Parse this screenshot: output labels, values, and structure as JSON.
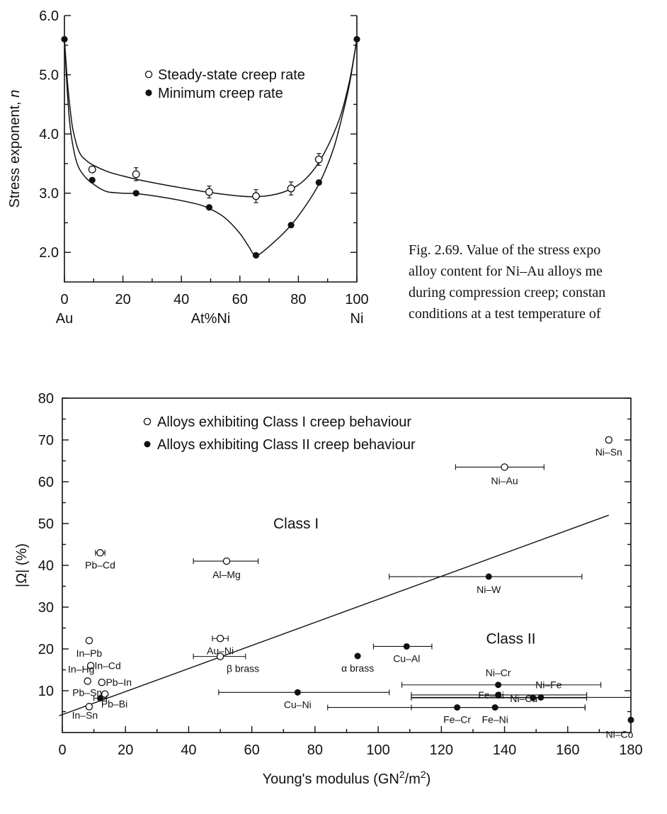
{
  "caption": {
    "lines": [
      "Fig. 2.69.  Value of the stress expo",
      "alloy content for Ni–Au alloys me",
      "during compression creep; constan",
      "conditions at a test temperature of"
    ]
  },
  "chart_data": [
    {
      "type": "line",
      "title": "",
      "xlabel": "At%Ni",
      "ylabel": "Stress exponent, n",
      "ylabel_parts": [
        "Stress exponent, ",
        "n"
      ],
      "xlim": [
        0,
        100
      ],
      "ylim": [
        1.5,
        6.0
      ],
      "x_ticks": [
        0,
        20,
        40,
        60,
        80,
        100
      ],
      "y_ticks": [
        "2.0",
        "3.0",
        "4.0",
        "5.0",
        "6.0"
      ],
      "x_end_labels": {
        "left": "Au",
        "right": "Ni"
      },
      "legend_placement": "upper-center",
      "series": [
        {
          "name": "Steady-state creep rate",
          "marker": "open-circle",
          "x": [
            9.5,
            24.5,
            49.5,
            65.5,
            77.5,
            87
          ],
          "y": [
            3.4,
            3.32,
            3.02,
            2.95,
            3.08,
            3.57
          ],
          "err": [
            0,
            0.11,
            0.1,
            0.11,
            0.11,
            0.1
          ],
          "curve_x": [
            0,
            1,
            2,
            3,
            5,
            7.5,
            10,
            15,
            20,
            25,
            30,
            40,
            50,
            60,
            65,
            70,
            75,
            80,
            84,
            88,
            92,
            95,
            97.5,
            99,
            100
          ],
          "curve_y": [
            5.6,
            4.9,
            4.4,
            4.05,
            3.7,
            3.55,
            3.47,
            3.36,
            3.29,
            3.23,
            3.18,
            3.09,
            3.01,
            2.95,
            2.94,
            2.96,
            3.02,
            3.14,
            3.32,
            3.6,
            4.0,
            4.4,
            4.9,
            5.3,
            5.6
          ]
        },
        {
          "name": "Minimum creep rate",
          "marker": "filled-circle",
          "x": [
            9.5,
            24.5,
            49.5,
            65.5,
            77.5,
            87
          ],
          "y": [
            3.22,
            3.0,
            2.76,
            1.95,
            2.46,
            3.18
          ],
          "curve_x": [
            0,
            1,
            2,
            3.5,
            5,
            7.5,
            10,
            12.5,
            15,
            20,
            25,
            35,
            45,
            50,
            55,
            60,
            63,
            65.5,
            70,
            77.5,
            84,
            88,
            92,
            95,
            97.5,
            100
          ],
          "curve_y": [
            5.6,
            4.7,
            4.1,
            3.65,
            3.42,
            3.25,
            3.15,
            3.07,
            3.02,
            3.0,
            2.99,
            2.92,
            2.82,
            2.73,
            2.58,
            2.32,
            2.1,
            1.95,
            2.1,
            2.46,
            2.9,
            3.25,
            3.75,
            4.3,
            4.85,
            5.6
          ]
        }
      ],
      "endpoints": [
        {
          "x": 0,
          "y": 5.6
        },
        {
          "x": 100,
          "y": 5.6
        }
      ]
    },
    {
      "type": "scatter",
      "title": "",
      "xlabel": "Young's modulus (GN2/m2)",
      "xlabel_parts": [
        "Young's modulus (GN",
        "2",
        "/m",
        "2",
        ")"
      ],
      "ylabel": "|Ω| (%)",
      "xlim": [
        0,
        180
      ],
      "ylim": [
        0,
        80
      ],
      "x_ticks": [
        0,
        20,
        40,
        60,
        80,
        100,
        120,
        140,
        160,
        180
      ],
      "y_ticks": [
        10,
        20,
        30,
        40,
        50,
        60,
        70,
        80
      ],
      "legend_placement": "top-left",
      "region_labels": [
        {
          "text": "Class I",
          "x": 74,
          "y": 50
        },
        {
          "text": "Class II",
          "x": 142,
          "y": 22.5
        }
      ],
      "boundary_line": {
        "x": [
          -1,
          173
        ],
        "y": [
          4,
          52
        ]
      },
      "series": [
        {
          "name": "Alloys exhibiting Class I creep behaviour",
          "marker": "open-circle",
          "points": [
            {
              "label": "Ni–Sn",
              "x": 173,
              "y": 70,
              "xerr": [
                173,
                173
              ]
            },
            {
              "label": "Ni–Au",
              "x": 140,
              "y": 63.5,
              "xerr": [
                124.5,
                152.5
              ]
            },
            {
              "label": "Pb–Cd",
              "x": 12,
              "y": 43,
              "xerr": [
                10.5,
                13.5
              ]
            },
            {
              "label": "Al–Mg",
              "x": 52,
              "y": 41,
              "xerr": [
                41.5,
                62
              ]
            },
            {
              "label": "Au–Ni",
              "x": 50,
              "y": 22.5,
              "xerr": [
                47.5,
                52.5
              ]
            },
            {
              "label": "β brass",
              "x": 50,
              "y": 18.2,
              "xerr": [
                41.5,
                58
              ]
            },
            {
              "label": "In–Pb",
              "x": 8.5,
              "y": 22,
              "xerr": [
                7.8,
                9.2
              ]
            },
            {
              "label": "In–Cd",
              "x": 9,
              "y": 16,
              "xerr": [
                8.3,
                9.7
              ]
            },
            {
              "label": "In–Hg",
              "x": 8,
              "y": 12.3,
              "xerr": [
                8,
                8
              ]
            },
            {
              "label": "Pb–In",
              "x": 12.5,
              "y": 12,
              "xerr": [
                11.8,
                13.2
              ]
            },
            {
              "label": "Pb–Sn",
              "x": 13.5,
              "y": 9.2,
              "xerr": [
                13.5,
                13.5
              ]
            },
            {
              "label": "In–Sn",
              "x": 8.5,
              "y": 6.2,
              "xerr": [
                7.8,
                9.2
              ]
            }
          ]
        },
        {
          "name": "Alloys exhibiting Class II creep behaviour",
          "marker": "filled-circle",
          "points": [
            {
              "label": "Ni–W",
              "x": 135,
              "y": 37.3,
              "xerr": [
                103.5,
                164.5
              ]
            },
            {
              "label": "Cu–Al",
              "x": 109,
              "y": 20.6,
              "xerr": [
                98.5,
                117
              ]
            },
            {
              "label": "α brass",
              "x": 93.5,
              "y": 18.3,
              "xerr": [
                93.5,
                93.5
              ]
            },
            {
              "label": "Cu–Ni",
              "x": 74.5,
              "y": 9.6,
              "xerr": [
                49.5,
                103.5
              ]
            },
            {
              "label": "Ni–Cr",
              "x": 138,
              "y": 11.4,
              "xerr": [
                107.5,
                170.5
              ]
            },
            {
              "label": "Fe–Si",
              "x": 138,
              "y": 9.0,
              "xerr": [
                110.5,
                166
              ]
            },
            {
              "label": "Ni–Fe",
              "x": 151.5,
              "y": 8.4,
              "xerr": [
                110.5,
                180
              ]
            },
            {
              "label": "Ni–Cu",
              "x": 149,
              "y": 8.3,
              "xerr": [
                110.5,
                166
              ]
            },
            {
              "label": "Fe–Cr",
              "x": 125,
              "y": 6.0,
              "xerr": [
                84,
                165.5
              ]
            },
            {
              "label": "Fe–Ni",
              "x": 137,
              "y": 6.0,
              "xerr": [
                110.5,
                165.5
              ]
            },
            {
              "label": "Ni–Co",
              "x": 180,
              "y": 3.0,
              "xerr": [
                180,
                180
              ]
            },
            {
              "label": "Pb–Bi",
              "x": 12,
              "y": 8.2,
              "xerr": [
                10,
                14
              ]
            }
          ]
        }
      ]
    }
  ]
}
